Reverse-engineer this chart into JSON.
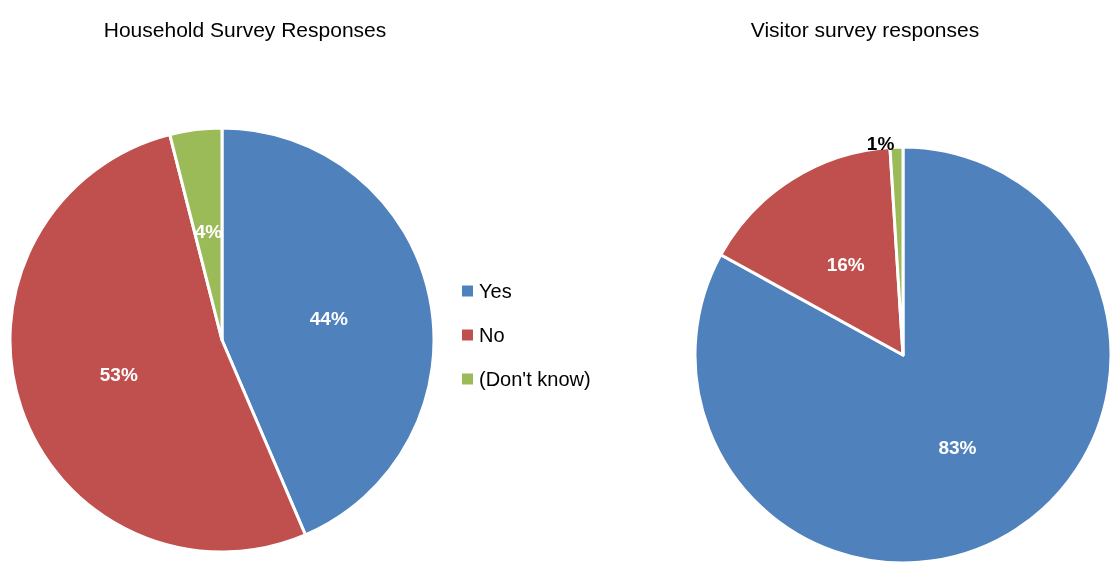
{
  "chart_data": [
    {
      "type": "pie",
      "title": "Household Survey Responses",
      "categories": [
        "Yes",
        "No",
        "(Don't know)"
      ],
      "values": [
        44,
        53,
        4
      ],
      "value_labels": [
        "44%",
        "53%",
        "4%"
      ],
      "colors": [
        "#4f81bd",
        "#c0504d",
        "#9bbb59"
      ],
      "legend": "right"
    },
    {
      "type": "pie",
      "title": "Visitor survey responses",
      "categories": [
        null,
        null,
        null
      ],
      "values": [
        83,
        16,
        1
      ],
      "value_labels": [
        "83%",
        "16%",
        "1%"
      ],
      "colors": [
        "#4f81bd",
        "#c0504d",
        "#9bbb59"
      ],
      "legend": false
    }
  ]
}
